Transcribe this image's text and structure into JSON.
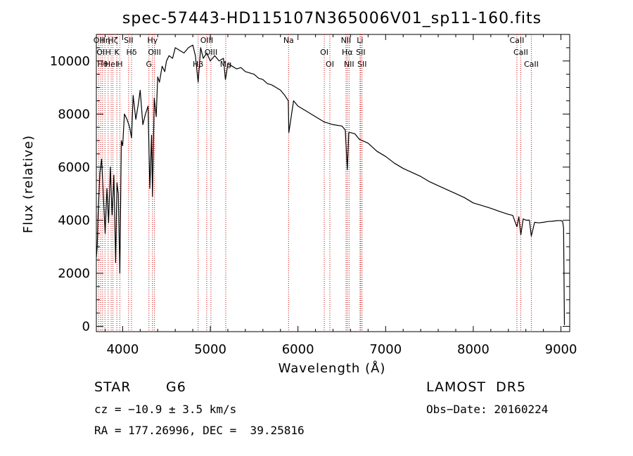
{
  "chart_data": {
    "type": "line",
    "title": "spec-57443-HD115107N365006V01_sp11-160.fits",
    "xlabel": "Wavelength (Å)",
    "ylabel": "Flux (relative)",
    "xlim": [
      3700,
      9100
    ],
    "ylim": [
      -200,
      11000
    ],
    "x_ticks": [
      4000,
      5000,
      6000,
      7000,
      8000,
      9000
    ],
    "y_ticks": [
      0,
      2000,
      4000,
      6000,
      8000,
      10000
    ],
    "grid": false,
    "series": [
      {
        "x": [
          3700,
          3710,
          3720,
          3740,
          3760,
          3780,
          3800,
          3820,
          3840,
          3860,
          3880,
          3900,
          3920,
          3935,
          3950,
          3968,
          3985,
          4000,
          4020,
          4050,
          4080,
          4101,
          4120,
          4150,
          4180,
          4200,
          4230,
          4260,
          4290,
          4310,
          4330,
          4340,
          4360,
          4383,
          4400,
          4420,
          4450,
          4480,
          4500,
          4530,
          4570,
          4600,
          4650,
          4700,
          4750,
          4800,
          4830,
          4861,
          4890,
          4920,
          4960,
          5000,
          5050,
          5100,
          5150,
          5172,
          5183,
          5200,
          5250,
          5300,
          5350,
          5400,
          5450,
          5500,
          5550,
          5600,
          5650,
          5700,
          5750,
          5800,
          5850,
          5890,
          5896,
          5950,
          6000,
          6100,
          6200,
          6300,
          6400,
          6500,
          6540,
          6563,
          6580,
          6600,
          6650,
          6700,
          6800,
          6900,
          7000,
          7100,
          7200,
          7300,
          7400,
          7500,
          7600,
          7700,
          7800,
          7900,
          8000,
          8100,
          8200,
          8300,
          8400,
          8450,
          8498,
          8520,
          8542,
          8570,
          8600,
          8640,
          8662,
          8700,
          8750,
          8800,
          8850,
          8900,
          8950,
          9000,
          9020,
          9030,
          9040
        ],
        "y": [
          2600,
          3000,
          4200,
          5800,
          6300,
          4900,
          3500,
          5200,
          3900,
          6000,
          4200,
          5700,
          2400,
          5400,
          5000,
          2000,
          7000,
          6800,
          8000,
          7800,
          7500,
          7100,
          8700,
          7800,
          8400,
          8900,
          7600,
          8000,
          8300,
          5200,
          7200,
          4900,
          8600,
          7900,
          9400,
          9200,
          9800,
          9600,
          10000,
          10200,
          10100,
          10500,
          10400,
          10300,
          10500,
          10600,
          10200,
          9200,
          10500,
          10100,
          10300,
          10000,
          10200,
          10000,
          10100,
          9300,
          9500,
          9900,
          9800,
          9700,
          9750,
          9600,
          9550,
          9500,
          9350,
          9300,
          9150,
          9100,
          9000,
          8900,
          8700,
          8500,
          7300,
          8500,
          8300,
          8100,
          7900,
          7700,
          7600,
          7550,
          7400,
          5900,
          7300,
          7300,
          7250,
          7050,
          6900,
          6600,
          6400,
          6150,
          5950,
          5800,
          5650,
          5450,
          5300,
          5150,
          5000,
          4850,
          4650,
          4550,
          4450,
          4330,
          4220,
          4180,
          3750,
          4130,
          3450,
          4050,
          4000,
          4000,
          3400,
          3920,
          3900,
          3920,
          3950,
          3960,
          3980,
          3990,
          3950,
          3700,
          50
        ]
      }
    ],
    "line_markers": [
      {
        "w": 3727,
        "labels": [
          "OII"
        ]
      },
      {
        "w": 3750,
        "labels": [
          "OI"
        ]
      },
      {
        "w": 3771,
        "labels": [
          "Hθ"
        ]
      },
      {
        "w": 3798,
        "labels": [
          "Hη"
        ]
      },
      {
        "w": 3835,
        "labels": [
          "H"
        ]
      },
      {
        "w": 3869,
        "labels": [
          "HeI"
        ]
      },
      {
        "w": 3889,
        "labels": [
          "Hζ"
        ]
      },
      {
        "w": 3934,
        "labels": [
          "K"
        ]
      },
      {
        "w": 3968,
        "labels": [
          "H"
        ]
      },
      {
        "w": 4068,
        "labels": [
          "SII"
        ]
      },
      {
        "w": 4101,
        "labels": [
          "Hδ"
        ]
      },
      {
        "w": 4300,
        "labels": [
          "G"
        ]
      },
      {
        "w": 4340,
        "labels": [
          "Hγ"
        ]
      },
      {
        "w": 4363,
        "labels": [
          "OIII"
        ]
      },
      {
        "w": 4861,
        "labels": [
          "Hβ"
        ]
      },
      {
        "w": 4959,
        "labels": [
          "OIII"
        ]
      },
      {
        "w": 5007,
        "labels": [
          "OIII"
        ]
      },
      {
        "w": 5176,
        "labels": [
          "Mg"
        ]
      },
      {
        "w": 5893,
        "labels": [
          "Na"
        ]
      },
      {
        "w": 6300,
        "labels": [
          "OI"
        ]
      },
      {
        "w": 6364,
        "labels": [
          "OI"
        ]
      },
      {
        "w": 6548,
        "labels": [
          "NII"
        ]
      },
      {
        "w": 6563,
        "labels": [
          "Hα"
        ]
      },
      {
        "w": 6583,
        "labels": [
          "NII"
        ]
      },
      {
        "w": 6708,
        "labels": [
          "Li"
        ]
      },
      {
        "w": 6716,
        "labels": [
          "SII"
        ]
      },
      {
        "w": 6731,
        "labels": [
          "SII"
        ]
      },
      {
        "w": 8498,
        "labels": [
          "CaII"
        ]
      },
      {
        "w": 8542,
        "labels": [
          "CaII"
        ]
      },
      {
        "w": 8662,
        "labels": [
          "CaII"
        ]
      }
    ],
    "line_color": "#000000",
    "marker_color": "#cc0000"
  },
  "info": {
    "object_class": "STAR",
    "subclass": "G6",
    "survey": "LAMOST  DR5",
    "cz": "cz = −10.9 ± 3.5 km/s",
    "obs_date": "Obs−Date: 20160224",
    "coords": "RA = 177.26996, DEC =  39.25816"
  }
}
